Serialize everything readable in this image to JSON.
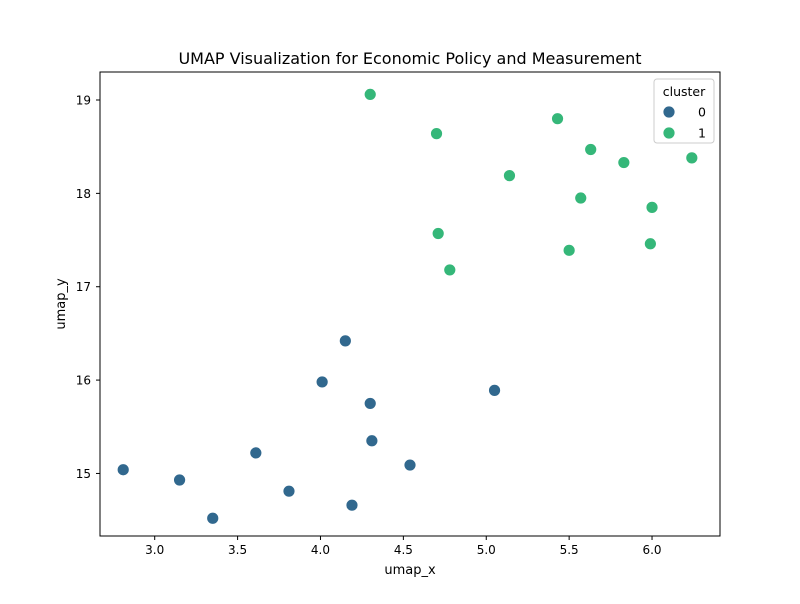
{
  "chart_data": {
    "type": "scatter",
    "title": "UMAP Visualization for Economic Policy and Measurement",
    "xlabel": "umap_x",
    "ylabel": "umap_y",
    "xlim": [
      2.67,
      6.41
    ],
    "ylim": [
      14.33,
      19.3
    ],
    "x_ticks": [
      3.0,
      3.5,
      4.0,
      4.5,
      5.0,
      5.5,
      6.0
    ],
    "x_tick_labels": [
      "3.0",
      "3.5",
      "4.0",
      "4.5",
      "5.0",
      "5.5",
      "6.0"
    ],
    "y_ticks": [
      15,
      16,
      17,
      18,
      19
    ],
    "y_tick_labels": [
      "15",
      "16",
      "17",
      "18",
      "19"
    ],
    "grid": false,
    "legend": {
      "title": "cluster",
      "placement": "top-right",
      "entries": [
        {
          "label": "0",
          "color": "#31688e"
        },
        {
          "label": "1",
          "color": "#35b779"
        }
      ]
    },
    "series": [
      {
        "name": "0",
        "color": "#31688e",
        "points": [
          {
            "x": 2.81,
            "y": 15.04
          },
          {
            "x": 3.15,
            "y": 14.93
          },
          {
            "x": 3.35,
            "y": 14.52
          },
          {
            "x": 3.61,
            "y": 15.22
          },
          {
            "x": 3.81,
            "y": 14.81
          },
          {
            "x": 4.01,
            "y": 15.98
          },
          {
            "x": 4.15,
            "y": 16.42
          },
          {
            "x": 4.19,
            "y": 14.66
          },
          {
            "x": 4.3,
            "y": 15.75
          },
          {
            "x": 4.31,
            "y": 15.35
          },
          {
            "x": 4.54,
            "y": 15.09
          },
          {
            "x": 5.05,
            "y": 15.89
          }
        ]
      },
      {
        "name": "1",
        "color": "#35b779",
        "points": [
          {
            "x": 4.3,
            "y": 19.06
          },
          {
            "x": 4.7,
            "y": 18.64
          },
          {
            "x": 4.71,
            "y": 17.57
          },
          {
            "x": 4.78,
            "y": 17.18
          },
          {
            "x": 5.14,
            "y": 18.19
          },
          {
            "x": 5.43,
            "y": 18.8
          },
          {
            "x": 5.5,
            "y": 17.39
          },
          {
            "x": 5.57,
            "y": 17.95
          },
          {
            "x": 5.63,
            "y": 18.47
          },
          {
            "x": 5.83,
            "y": 18.33
          },
          {
            "x": 5.99,
            "y": 17.46
          },
          {
            "x": 6.0,
            "y": 17.85
          },
          {
            "x": 6.24,
            "y": 18.38
          }
        ]
      }
    ]
  }
}
